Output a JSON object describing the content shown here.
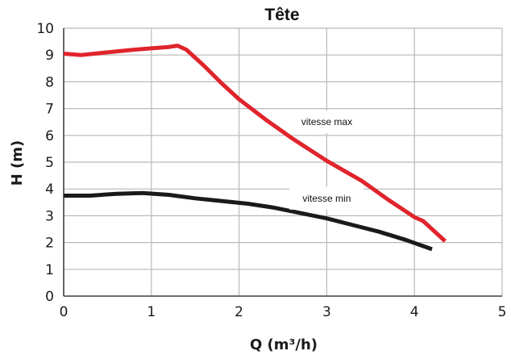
{
  "chart_data": {
    "type": "line",
    "title": "Tête",
    "xlabel": "Q (m³/h)",
    "ylabel": "H (m)",
    "xlim": [
      0,
      5
    ],
    "ylim": [
      0,
      10
    ],
    "x_ticks": [
      "0",
      "1",
      "2",
      "3",
      "4",
      "5"
    ],
    "y_ticks": [
      "0",
      "1",
      "2",
      "3",
      "4",
      "5",
      "6",
      "7",
      "8",
      "9",
      "10"
    ],
    "grid": true,
    "series": [
      {
        "color": "#e0242c",
        "x": [
          0,
          0.2,
          0.5,
          0.8,
          1.0,
          1.2,
          1.3,
          1.4,
          1.6,
          1.8,
          2.0,
          2.3,
          2.6,
          3.0,
          3.4,
          3.7,
          4.0,
          4.1,
          4.2,
          4.35
        ],
        "y": [
          9.05,
          9.0,
          9.1,
          9.2,
          9.25,
          9.3,
          9.35,
          9.2,
          8.6,
          7.95,
          7.35,
          6.6,
          5.9,
          5.05,
          4.3,
          3.6,
          2.95,
          2.8,
          2.5,
          2.05
        ]
      },
      {
        "color": "#1a1a1a",
        "x": [
          0,
          0.3,
          0.6,
          0.9,
          1.2,
          1.5,
          1.8,
          2.1,
          2.4,
          2.7,
          3.0,
          3.3,
          3.6,
          3.9,
          4.2
        ],
        "y": [
          3.75,
          3.75,
          3.82,
          3.85,
          3.78,
          3.65,
          3.55,
          3.45,
          3.3,
          3.1,
          2.9,
          2.65,
          2.4,
          2.1,
          1.75
        ]
      }
    ],
    "annotations": [
      {
        "text": "vitesse max",
        "x": 3.0,
        "y": 6.5
      },
      {
        "text": "vitesse min",
        "x": 3.0,
        "y": 3.65
      }
    ]
  }
}
